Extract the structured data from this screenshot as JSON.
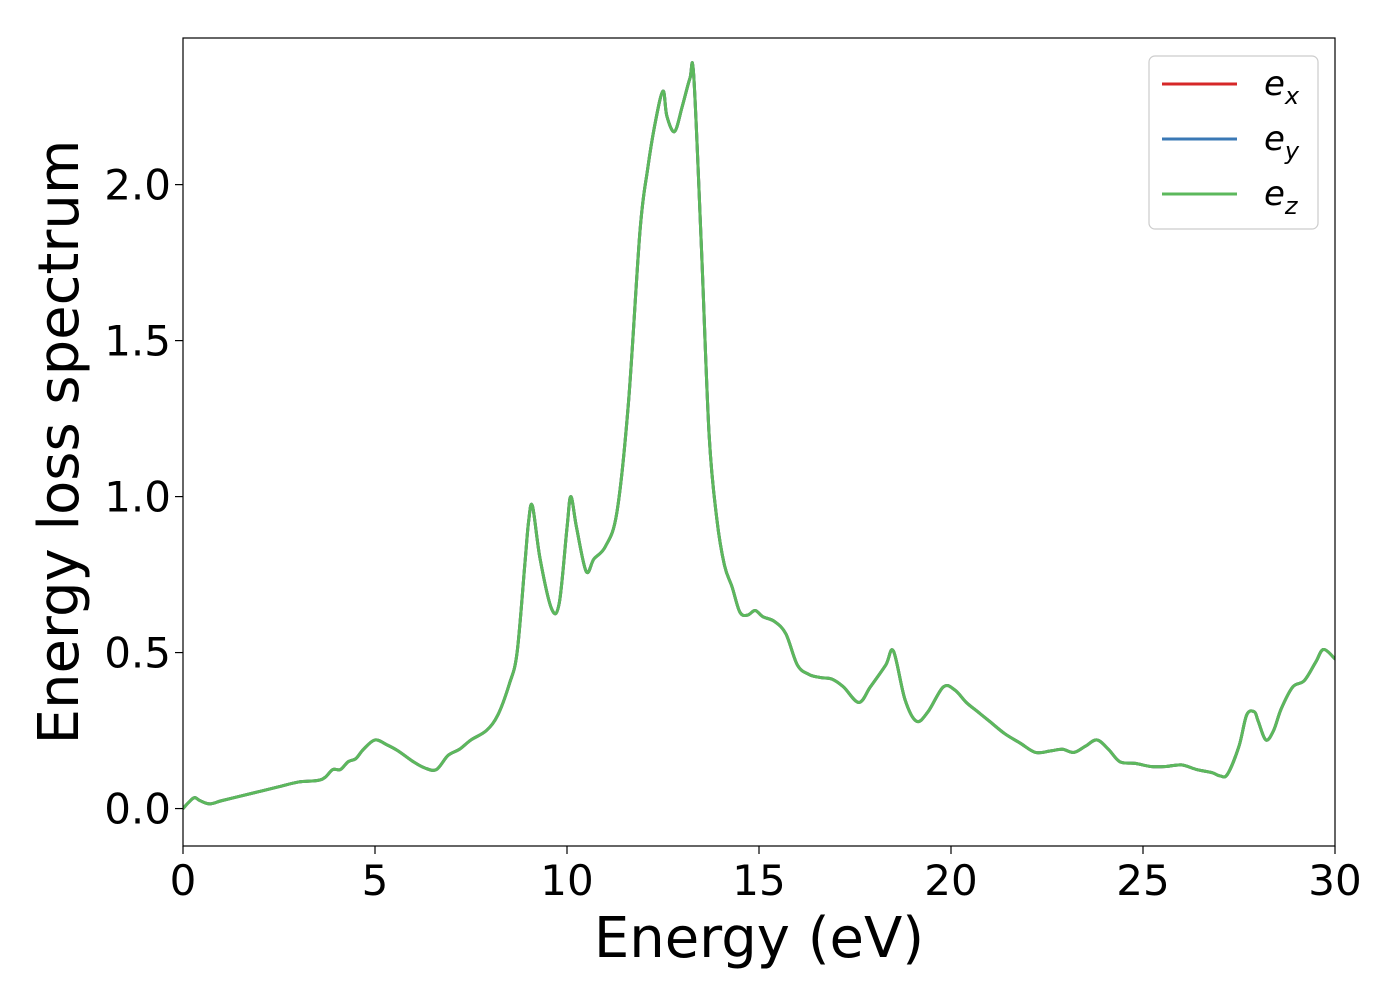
{
  "chart_data": {
    "type": "line",
    "title": "",
    "xlabel": "Energy (eV)",
    "ylabel": "Energy loss spectrum",
    "xlim": [
      0,
      30
    ],
    "ylim": [
      -0.12,
      2.47
    ],
    "xticks": [
      0,
      5,
      10,
      15,
      20,
      25,
      30
    ],
    "xtick_labels": [
      "0",
      "5",
      "10",
      "15",
      "20",
      "25",
      "30"
    ],
    "yticks": [
      0.0,
      0.5,
      1.0,
      1.5,
      2.0
    ],
    "ytick_labels": [
      "0.0",
      "0.5",
      "1.0",
      "1.5",
      "2.0"
    ],
    "grid": false,
    "legend_position": "top-right",
    "legend": [
      {
        "base": "e",
        "sub": "x",
        "color": "#d62728"
      },
      {
        "base": "e",
        "sub": "y",
        "color": "#3a78b5"
      },
      {
        "base": "e",
        "sub": "z",
        "color": "#5cb85c"
      }
    ],
    "series": [
      {
        "color": "#d62728",
        "x": [
          0,
          0.15,
          0.3,
          0.45,
          0.7,
          1.0,
          1.5,
          2.0,
          2.5,
          3.0,
          3.5,
          3.7,
          3.9,
          4.1,
          4.3,
          4.5,
          4.7,
          5.0,
          5.3,
          5.6,
          6.0,
          6.3,
          6.6,
          6.9,
          7.2,
          7.5,
          7.9,
          8.2,
          8.5,
          8.7,
          8.9,
          9.0,
          9.1,
          9.3,
          9.6,
          9.8,
          10.0,
          10.1,
          10.25,
          10.5,
          10.7,
          11.0,
          11.3,
          11.6,
          11.9,
          12.1,
          12.3,
          12.5,
          12.6,
          12.8,
          13.0,
          13.2,
          13.3,
          13.5,
          13.7,
          13.9,
          14.1,
          14.3,
          14.5,
          14.7,
          14.9,
          15.1,
          15.4,
          15.7,
          16.0,
          16.3,
          16.6,
          16.9,
          17.2,
          17.6,
          17.9,
          18.3,
          18.5,
          18.8,
          19.1,
          19.4,
          19.8,
          20.1,
          20.4,
          20.7,
          21.0,
          21.4,
          21.8,
          22.2,
          22.6,
          22.9,
          23.2,
          23.5,
          23.8,
          24.1,
          24.4,
          24.8,
          25.2,
          25.6,
          26.0,
          26.4,
          26.8,
          27.0,
          27.2,
          27.5,
          27.7,
          27.9,
          28.0,
          28.2,
          28.4,
          28.6,
          28.9,
          29.2,
          29.5,
          29.7,
          30.0
        ],
        "y": [
          0.0,
          0.02,
          0.035,
          0.025,
          0.015,
          0.025,
          0.04,
          0.055,
          0.07,
          0.085,
          0.09,
          0.1,
          0.125,
          0.125,
          0.15,
          0.16,
          0.19,
          0.22,
          0.205,
          0.185,
          0.15,
          0.13,
          0.125,
          0.17,
          0.19,
          0.22,
          0.25,
          0.3,
          0.4,
          0.5,
          0.78,
          0.92,
          0.97,
          0.8,
          0.64,
          0.66,
          0.9,
          1.0,
          0.9,
          0.76,
          0.8,
          0.84,
          0.95,
          1.3,
          1.85,
          2.05,
          2.2,
          2.3,
          2.22,
          2.17,
          2.25,
          2.34,
          2.35,
          1.8,
          1.2,
          0.93,
          0.78,
          0.71,
          0.63,
          0.62,
          0.635,
          0.615,
          0.6,
          0.56,
          0.46,
          0.43,
          0.42,
          0.415,
          0.39,
          0.34,
          0.39,
          0.46,
          0.505,
          0.35,
          0.28,
          0.31,
          0.39,
          0.38,
          0.34,
          0.31,
          0.28,
          0.24,
          0.21,
          0.18,
          0.185,
          0.19,
          0.18,
          0.2,
          0.22,
          0.19,
          0.15,
          0.145,
          0.135,
          0.135,
          0.14,
          0.125,
          0.115,
          0.105,
          0.11,
          0.2,
          0.3,
          0.31,
          0.28,
          0.22,
          0.25,
          0.32,
          0.39,
          0.41,
          0.47,
          0.51,
          0.48
        ]
      },
      {
        "color": "#3a78b5",
        "x": [
          0,
          0.15,
          0.3,
          0.45,
          0.7,
          1.0,
          1.5,
          2.0,
          2.5,
          3.0,
          3.5,
          3.7,
          3.9,
          4.1,
          4.3,
          4.5,
          4.7,
          5.0,
          5.3,
          5.6,
          6.0,
          6.3,
          6.6,
          6.9,
          7.2,
          7.5,
          7.9,
          8.2,
          8.5,
          8.7,
          8.9,
          9.0,
          9.1,
          9.3,
          9.6,
          9.8,
          10.0,
          10.1,
          10.25,
          10.5,
          10.7,
          11.0,
          11.3,
          11.6,
          11.9,
          12.1,
          12.3,
          12.5,
          12.6,
          12.8,
          13.0,
          13.2,
          13.3,
          13.5,
          13.7,
          13.9,
          14.1,
          14.3,
          14.5,
          14.7,
          14.9,
          15.1,
          15.4,
          15.7,
          16.0,
          16.3,
          16.6,
          16.9,
          17.2,
          17.6,
          17.9,
          18.3,
          18.5,
          18.8,
          19.1,
          19.4,
          19.8,
          20.1,
          20.4,
          20.7,
          21.0,
          21.4,
          21.8,
          22.2,
          22.6,
          22.9,
          23.2,
          23.5,
          23.8,
          24.1,
          24.4,
          24.8,
          25.2,
          25.6,
          26.0,
          26.4,
          26.8,
          27.0,
          27.2,
          27.5,
          27.7,
          27.9,
          28.0,
          28.2,
          28.4,
          28.6,
          28.9,
          29.2,
          29.5,
          29.7,
          30.0
        ],
        "y": [
          0.0,
          0.02,
          0.035,
          0.025,
          0.015,
          0.025,
          0.04,
          0.055,
          0.07,
          0.085,
          0.09,
          0.1,
          0.125,
          0.125,
          0.15,
          0.16,
          0.19,
          0.22,
          0.205,
          0.185,
          0.15,
          0.13,
          0.125,
          0.17,
          0.19,
          0.22,
          0.25,
          0.3,
          0.4,
          0.5,
          0.78,
          0.92,
          0.97,
          0.8,
          0.64,
          0.66,
          0.9,
          1.0,
          0.9,
          0.76,
          0.8,
          0.84,
          0.95,
          1.3,
          1.85,
          2.05,
          2.2,
          2.3,
          2.22,
          2.17,
          2.25,
          2.34,
          2.35,
          1.8,
          1.2,
          0.93,
          0.78,
          0.71,
          0.63,
          0.62,
          0.635,
          0.615,
          0.6,
          0.56,
          0.46,
          0.43,
          0.42,
          0.415,
          0.39,
          0.34,
          0.39,
          0.46,
          0.505,
          0.35,
          0.28,
          0.31,
          0.39,
          0.38,
          0.34,
          0.31,
          0.28,
          0.24,
          0.21,
          0.18,
          0.185,
          0.19,
          0.18,
          0.2,
          0.22,
          0.19,
          0.15,
          0.145,
          0.135,
          0.135,
          0.14,
          0.125,
          0.115,
          0.105,
          0.11,
          0.2,
          0.3,
          0.31,
          0.28,
          0.22,
          0.25,
          0.32,
          0.39,
          0.41,
          0.47,
          0.51,
          0.48
        ]
      },
      {
        "color": "#5cb85c",
        "x": [
          0,
          0.15,
          0.3,
          0.45,
          0.7,
          1.0,
          1.5,
          2.0,
          2.5,
          3.0,
          3.5,
          3.7,
          3.9,
          4.1,
          4.3,
          4.5,
          4.7,
          5.0,
          5.3,
          5.6,
          6.0,
          6.3,
          6.6,
          6.9,
          7.2,
          7.5,
          7.9,
          8.2,
          8.5,
          8.7,
          8.9,
          9.0,
          9.1,
          9.3,
          9.6,
          9.8,
          10.0,
          10.1,
          10.25,
          10.5,
          10.7,
          11.0,
          11.3,
          11.6,
          11.9,
          12.1,
          12.3,
          12.5,
          12.6,
          12.8,
          13.0,
          13.2,
          13.3,
          13.5,
          13.7,
          13.9,
          14.1,
          14.3,
          14.5,
          14.7,
          14.9,
          15.1,
          15.4,
          15.7,
          16.0,
          16.3,
          16.6,
          16.9,
          17.2,
          17.6,
          17.9,
          18.3,
          18.5,
          18.8,
          19.1,
          19.4,
          19.8,
          20.1,
          20.4,
          20.7,
          21.0,
          21.4,
          21.8,
          22.2,
          22.6,
          22.9,
          23.2,
          23.5,
          23.8,
          24.1,
          24.4,
          24.8,
          25.2,
          25.6,
          26.0,
          26.4,
          26.8,
          27.0,
          27.2,
          27.5,
          27.7,
          27.9,
          28.0,
          28.2,
          28.4,
          28.6,
          28.9,
          29.2,
          29.5,
          29.7,
          30.0
        ],
        "y": [
          0.0,
          0.02,
          0.035,
          0.025,
          0.015,
          0.025,
          0.04,
          0.055,
          0.07,
          0.085,
          0.09,
          0.1,
          0.125,
          0.125,
          0.15,
          0.16,
          0.19,
          0.22,
          0.205,
          0.185,
          0.15,
          0.13,
          0.125,
          0.17,
          0.19,
          0.22,
          0.25,
          0.3,
          0.4,
          0.5,
          0.78,
          0.92,
          0.97,
          0.8,
          0.64,
          0.66,
          0.9,
          1.0,
          0.9,
          0.76,
          0.8,
          0.84,
          0.95,
          1.3,
          1.85,
          2.05,
          2.2,
          2.3,
          2.22,
          2.17,
          2.25,
          2.34,
          2.35,
          1.8,
          1.2,
          0.93,
          0.78,
          0.71,
          0.63,
          0.62,
          0.635,
          0.615,
          0.6,
          0.56,
          0.46,
          0.43,
          0.42,
          0.415,
          0.39,
          0.34,
          0.39,
          0.46,
          0.505,
          0.35,
          0.28,
          0.31,
          0.39,
          0.38,
          0.34,
          0.31,
          0.28,
          0.24,
          0.21,
          0.18,
          0.185,
          0.19,
          0.18,
          0.2,
          0.22,
          0.19,
          0.15,
          0.145,
          0.135,
          0.135,
          0.14,
          0.125,
          0.115,
          0.105,
          0.11,
          0.2,
          0.3,
          0.31,
          0.28,
          0.22,
          0.25,
          0.32,
          0.39,
          0.41,
          0.47,
          0.51,
          0.48
        ]
      }
    ]
  }
}
